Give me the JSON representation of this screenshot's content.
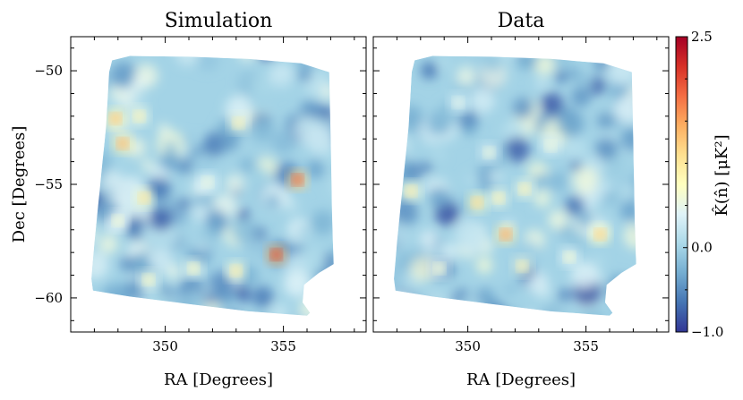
{
  "chart_data": [
    {
      "type": "heatmap",
      "title": "Simulation",
      "xlabel": "RA [Degrees]",
      "ylabel": "Dec [Degrees]",
      "xlim": [
        346,
        358.5
      ],
      "ylim": [
        -61.5,
        -48.5
      ],
      "x_ticks": [
        350,
        355
      ],
      "y_ticks": [
        -50,
        -55,
        -60
      ],
      "x_tick_labels": [
        "350",
        "355"
      ],
      "y_tick_labels": [
        "−50",
        "−55",
        "−60"
      ],
      "hotspots": [
        {
          "ra": 347.9,
          "dec": -52.1,
          "value": 1.4
        },
        {
          "ra": 348.2,
          "dec": -53.2,
          "value": 1.5
        },
        {
          "ra": 348.9,
          "dec": -52.0,
          "value": 0.9
        },
        {
          "ra": 349.1,
          "dec": -55.6,
          "value": 1.1
        },
        {
          "ra": 348.0,
          "dec": -56.6,
          "value": 0.7
        },
        {
          "ra": 353.1,
          "dec": -52.3,
          "value": 0.9
        },
        {
          "ra": 355.6,
          "dec": -54.8,
          "value": 2.0
        },
        {
          "ra": 354.7,
          "dec": -58.1,
          "value": 2.2
        },
        {
          "ra": 353.0,
          "dec": -58.8,
          "value": 1.0
        },
        {
          "ra": 351.2,
          "dec": -58.7,
          "value": 0.8
        },
        {
          "ra": 349.3,
          "dec": -59.2,
          "value": 0.8
        },
        {
          "ra": 351.8,
          "dec": -54.9,
          "value": 0.6
        }
      ]
    },
    {
      "type": "heatmap",
      "title": "Data",
      "xlabel": "RA [Degrees]",
      "ylabel": "",
      "xlim": [
        346,
        358.5
      ],
      "ylim": [
        -61.5,
        -48.5
      ],
      "x_ticks": [
        350,
        355
      ],
      "y_ticks": [
        -50,
        -55,
        -60
      ],
      "x_tick_labels": [
        "350",
        "355"
      ],
      "y_tick_labels": [],
      "hotspots": [
        {
          "ra": 347.6,
          "dec": -55.3,
          "value": 1.0
        },
        {
          "ra": 350.4,
          "dec": -55.8,
          "value": 1.2
        },
        {
          "ra": 351.6,
          "dec": -57.2,
          "value": 1.6
        },
        {
          "ra": 351.3,
          "dec": -55.6,
          "value": 0.9
        },
        {
          "ra": 352.4,
          "dec": -55.2,
          "value": 0.9
        },
        {
          "ra": 355.6,
          "dec": -57.2,
          "value": 1.3
        },
        {
          "ra": 352.3,
          "dec": -58.6,
          "value": 0.9
        },
        {
          "ra": 354.3,
          "dec": -58.2,
          "value": 0.7
        },
        {
          "ra": 348.8,
          "dec": -58.7,
          "value": 0.7
        },
        {
          "ra": 350.9,
          "dec": -53.6,
          "value": 0.6
        },
        {
          "ra": 353.5,
          "dec": -53.3,
          "value": 0.6
        },
        {
          "ra": 349.6,
          "dec": -51.4,
          "value": 0.5
        }
      ]
    }
  ],
  "colorbar": {
    "label": "K̂(n̂) [μK²]",
    "min": -1.0,
    "max": 2.5,
    "tick_labels": [
      {
        "value": 2.5,
        "label": "2.5"
      },
      {
        "value": 0.0,
        "label": "0.0"
      },
      {
        "value": -1.0,
        "label": "−1.0"
      }
    ],
    "colors": [
      "#313695",
      "#4575b4",
      "#74add1",
      "#abd9e9",
      "#e0f3f8",
      "#ffffbf",
      "#fee090",
      "#fdae61",
      "#f46d43",
      "#d73027",
      "#a50026"
    ]
  }
}
